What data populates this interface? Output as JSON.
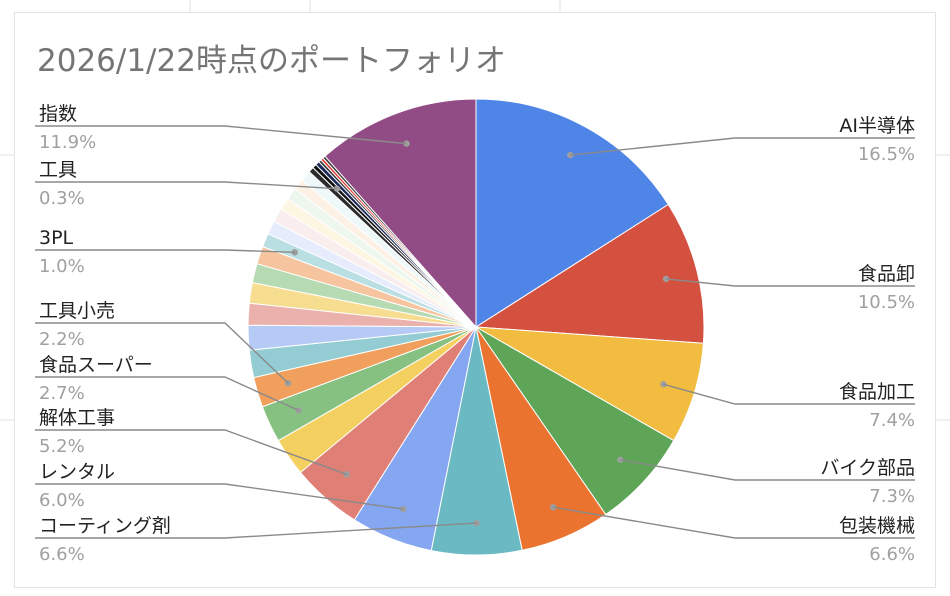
{
  "chart_data": {
    "type": "pie",
    "title": "2026/1/22時点のポートフォリオ",
    "labeled_slices": [
      {
        "name": "AI半導体",
        "pct_label": "16.5%"
      },
      {
        "name": "食品卸",
        "pct_label": "10.5%"
      },
      {
        "name": "食品加工",
        "pct_label": "7.4%"
      },
      {
        "name": "バイク部品",
        "pct_label": "7.3%"
      },
      {
        "name": "包装機械",
        "pct_label": "6.6%"
      },
      {
        "name": "コーティング剤",
        "pct_label": "6.6%"
      },
      {
        "name": "レンタル",
        "pct_label": "6.0%"
      },
      {
        "name": "解体工事",
        "pct_label": "5.2%"
      },
      {
        "name": "食品スーパー",
        "pct_label": "2.7%"
      },
      {
        "name": "工具小売",
        "pct_label": "2.2%"
      },
      {
        "name": "3PL",
        "pct_label": "1.0%"
      },
      {
        "name": "工具",
        "pct_label": "0.3%"
      },
      {
        "name": "指数",
        "pct_label": "11.9%"
      }
    ],
    "slices": [
      {
        "value": 16.5,
        "color": "#5085e8",
        "label": 0
      },
      {
        "value": 10.5,
        "color": "#d4503f",
        "label": 1
      },
      {
        "value": 7.4,
        "color": "#f1bc40",
        "label": 2
      },
      {
        "value": 7.3,
        "color": "#5ea557",
        "label": 3
      },
      {
        "value": 6.6,
        "color": "#ea7330",
        "label": 4
      },
      {
        "value": 6.6,
        "color": "#6bb9c3",
        "label": 5
      },
      {
        "value": 6.0,
        "color": "#85a6f1",
        "label": 6
      },
      {
        "value": 5.2,
        "color": "#df7f76",
        "label": 7
      },
      {
        "value": 2.8,
        "color": "#f4d060",
        "label": null
      },
      {
        "value": 2.7,
        "color": "#86c182",
        "label": 8
      },
      {
        "value": 2.2,
        "color": "#f0a05c",
        "label": 9
      },
      {
        "value": 2.0,
        "color": "#93cdd3",
        "label": null
      },
      {
        "value": 1.8,
        "color": "#b5cbf5",
        "label": null
      },
      {
        "value": 1.6,
        "color": "#ebb2ad",
        "label": null
      },
      {
        "value": 1.5,
        "color": "#f7dd8f",
        "label": null
      },
      {
        "value": 1.4,
        "color": "#b6dab2",
        "label": null
      },
      {
        "value": 1.3,
        "color": "#f6c49e",
        "label": null
      },
      {
        "value": 1.0,
        "color": "#b9dfe3",
        "label": 10
      },
      {
        "value": 1.0,
        "color": "#e6ecfb",
        "label": null
      },
      {
        "value": 1.0,
        "color": "#f9eded",
        "label": null
      },
      {
        "value": 0.9,
        "color": "#fcf6e2",
        "label": null
      },
      {
        "value": 0.9,
        "color": "#eef7ee",
        "label": null
      },
      {
        "value": 0.8,
        "color": "#fdf1e5",
        "label": null
      },
      {
        "value": 0.8,
        "color": "#eef8f9",
        "label": null
      },
      {
        "value": 0.4,
        "color": "#2b2b2b",
        "label": null
      },
      {
        "value": 0.3,
        "color": "#101010",
        "label": 11
      },
      {
        "value": 0.3,
        "color": "#1e2a5a",
        "label": null
      },
      {
        "value": 0.2,
        "color": "#333333",
        "label": null
      },
      {
        "value": 0.2,
        "color": "#e53935",
        "label": null
      },
      {
        "value": 0.2,
        "color": "#3a3a3a",
        "label": null
      },
      {
        "value": 11.9,
        "color": "#914c86",
        "label": 12
      }
    ],
    "legend": "none"
  }
}
